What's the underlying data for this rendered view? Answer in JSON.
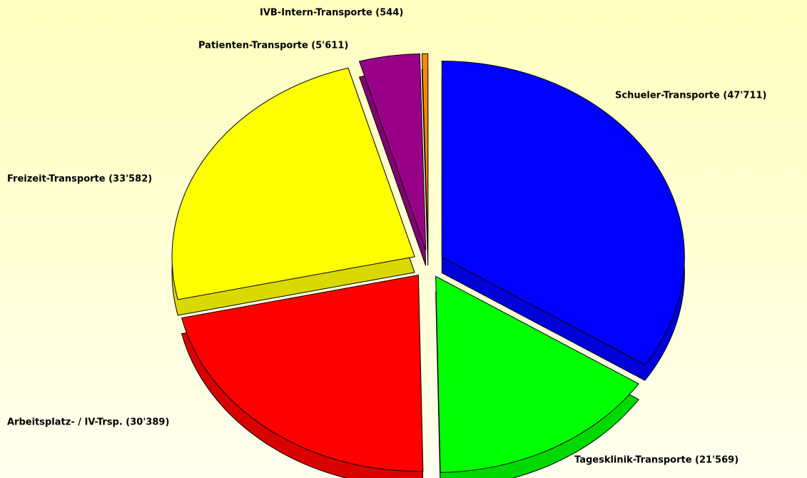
{
  "chart_data": {
    "type": "pie",
    "values": [
      47711,
      21569,
      30389,
      33582,
      5611,
      544
    ],
    "value_labels": [
      "Schueler-Transporte (47'711)",
      "Tagesklinik-Transporte (21'569)",
      "Arbeitsplatz- / IV-Trsp. (30'389)",
      "Freizeit-Transporte (33'582)",
      "Patienten-Transporte (5'611)",
      "IVB-Intern-Transporte (544)"
    ],
    "colors": [
      "#0000ff",
      "#00ff00",
      "#ff0000",
      "#ffff00",
      "#990088",
      "#ff8800"
    ]
  }
}
